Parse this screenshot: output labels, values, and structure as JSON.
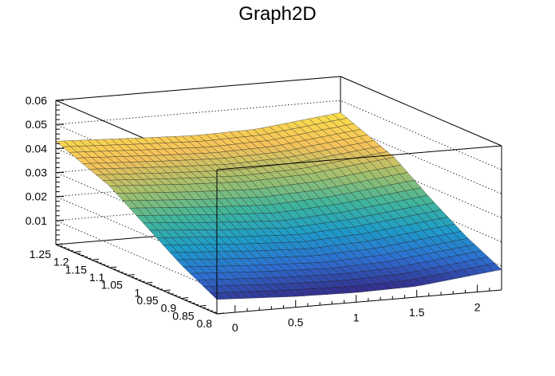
{
  "chart_data": {
    "type": "surface",
    "title": "Graph2D",
    "xlabel": "",
    "ylabel": "",
    "zlabel": "",
    "xlim": [
      -0.15,
      2.2
    ],
    "ylim": [
      0.8,
      1.25
    ],
    "zlim": [
      0.0,
      0.06
    ],
    "x_ticks": [
      0,
      0.5,
      1,
      1.5,
      2
    ],
    "x_tick_labels": [
      "0",
      "0.5",
      "1",
      "1.5",
      "2"
    ],
    "y_ticks": [
      0.8,
      0.85,
      0.9,
      0.95,
      1.0,
      1.05,
      1.1,
      1.15,
      1.2,
      1.25
    ],
    "y_tick_labels": [
      "0.8",
      "0.85",
      "0.9",
      "0.95",
      "1",
      "1.05",
      "1.1",
      "1.15",
      "1.2",
      "1.25"
    ],
    "z_ticks": [
      0.01,
      0.02,
      0.03,
      0.04,
      0.05,
      0.06
    ],
    "z_tick_labels": [
      "0.01",
      "0.02",
      "0.03",
      "0.04",
      "0.05",
      "0.06"
    ],
    "grid": true,
    "colormap": [
      "#352a87",
      "#2e6fd2",
      "#1e9cc8",
      "#40b59c",
      "#9ebf6e",
      "#f6c25a",
      "#f9e14b"
    ],
    "surface": {
      "x": [
        -0.15,
        0.5,
        1.0,
        1.5,
        2.2
      ],
      "y": [
        0.8,
        0.9,
        1.0,
        1.1,
        1.25
      ],
      "z": [
        [
          0.006,
          0.0045,
          0.004,
          0.0045,
          0.0085
        ],
        [
          0.014,
          0.012,
          0.011,
          0.012,
          0.016
        ],
        [
          0.024,
          0.0215,
          0.02,
          0.0215,
          0.0255
        ],
        [
          0.034,
          0.032,
          0.031,
          0.032,
          0.036
        ],
        [
          0.043,
          0.0415,
          0.0405,
          0.041,
          0.045
        ]
      ]
    }
  }
}
